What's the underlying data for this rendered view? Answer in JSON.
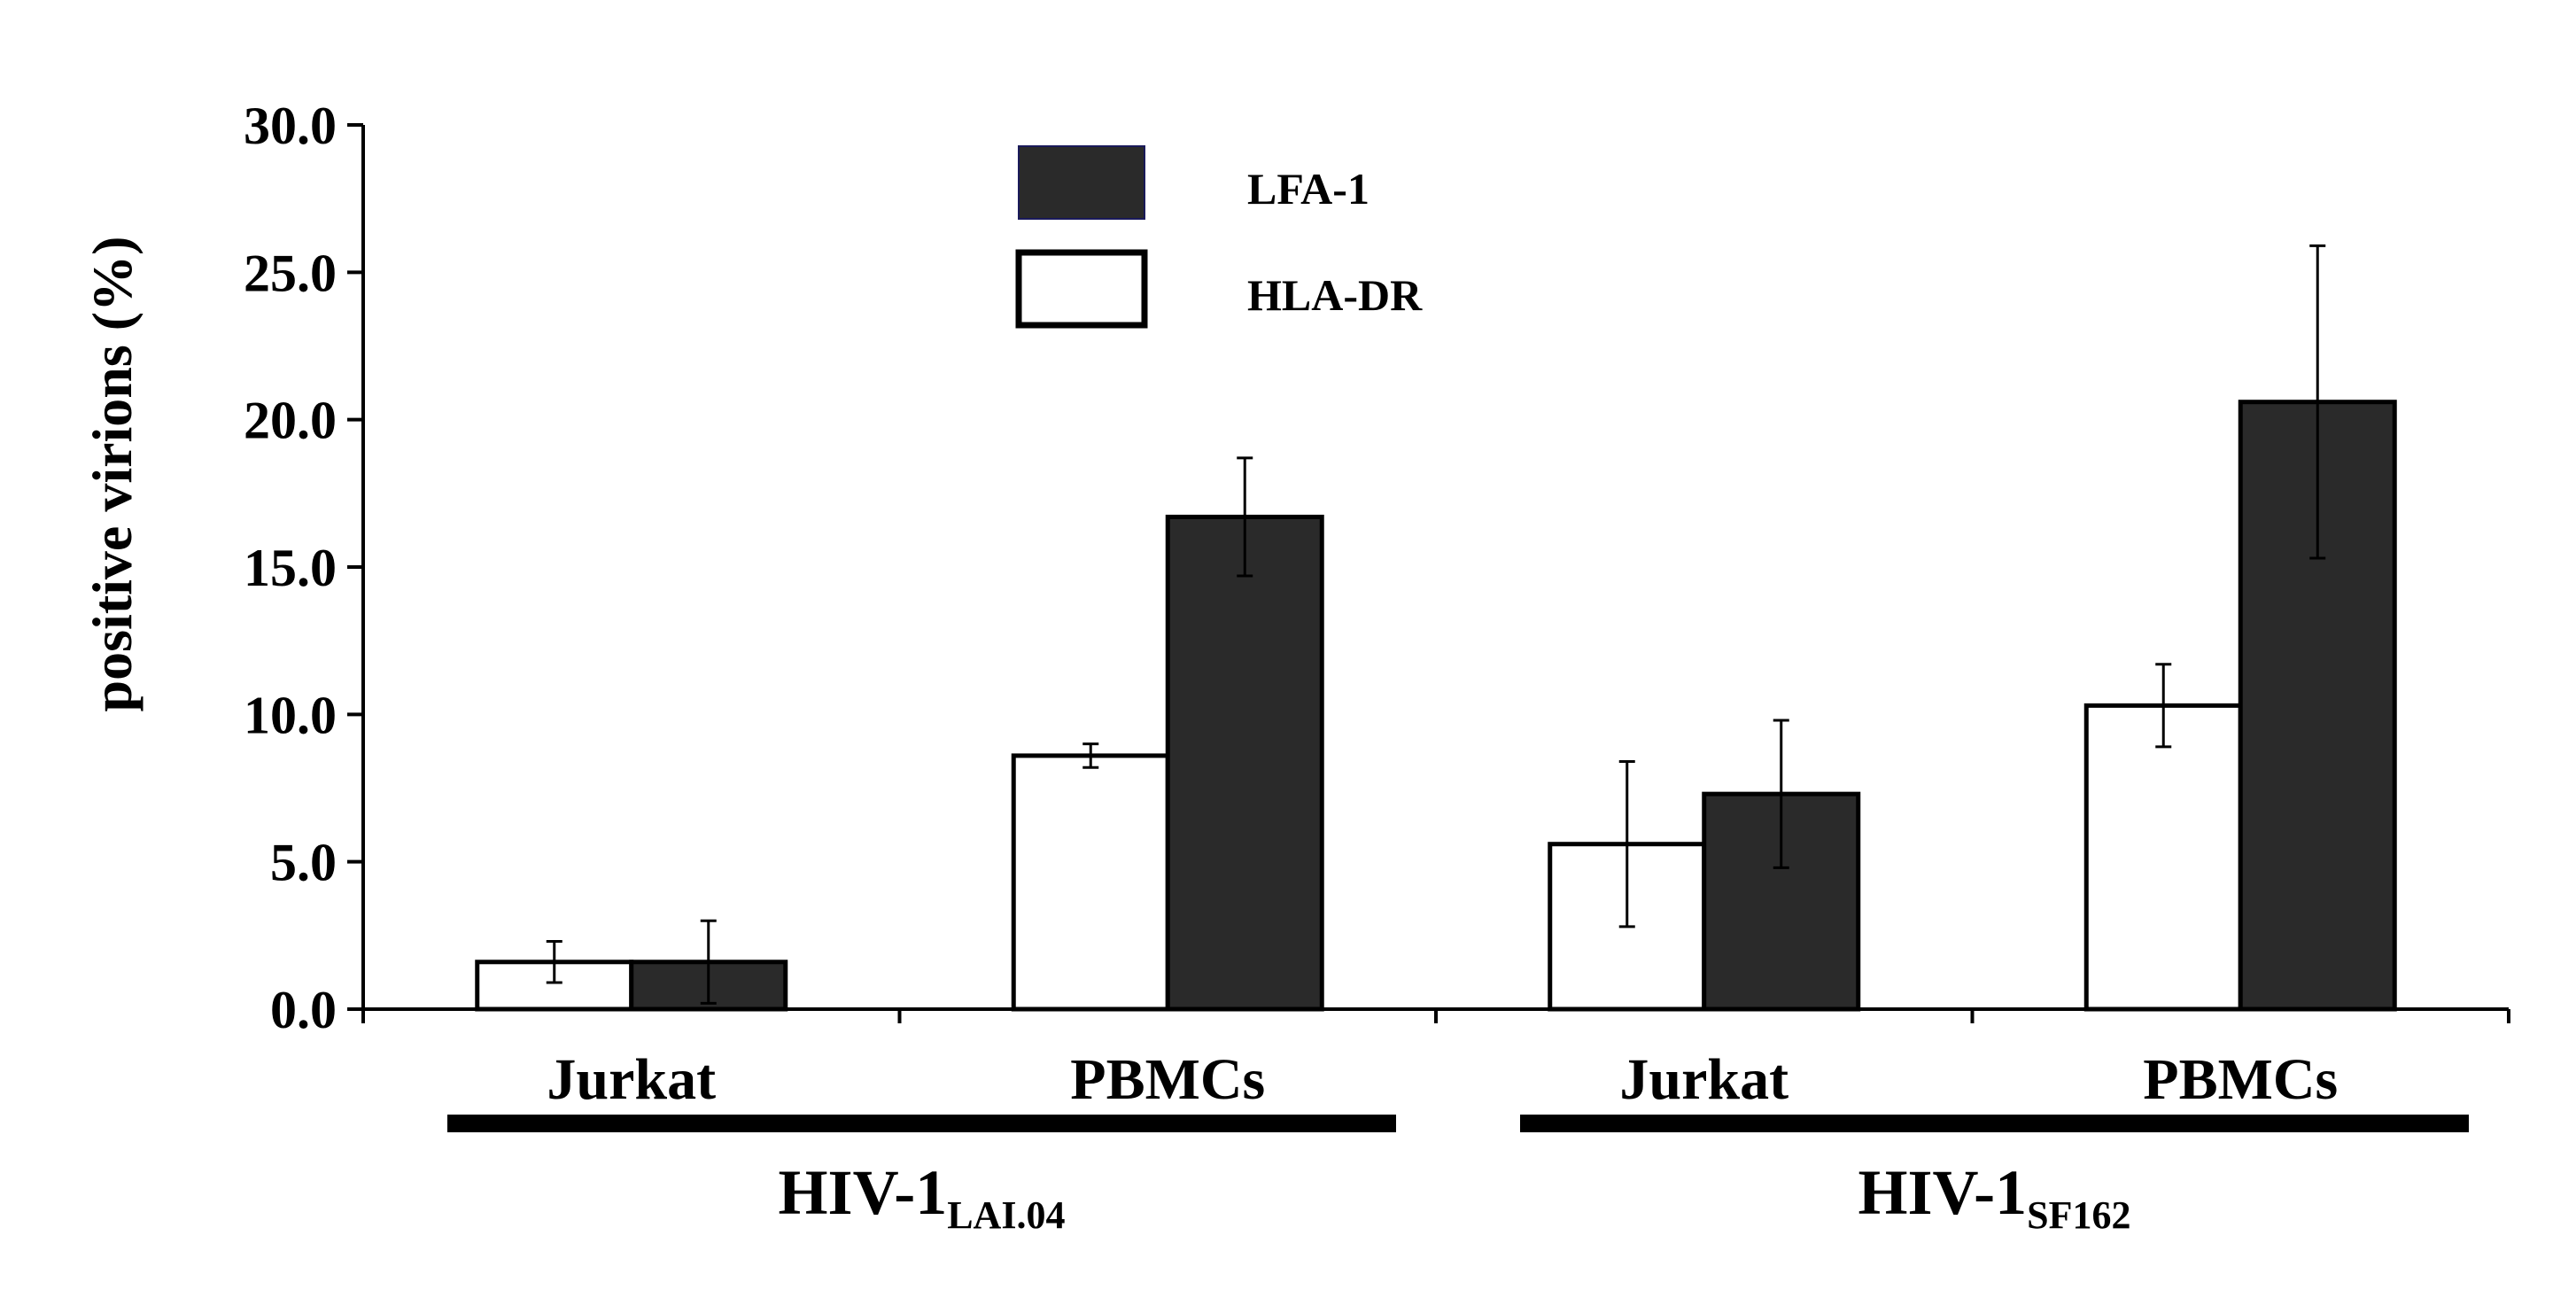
{
  "chart_data": {
    "type": "bar",
    "ylabel": "positive virions (%)",
    "ylim": [
      0,
      30
    ],
    "yticks": [
      "0.0",
      "5.0",
      "10.0",
      "15.0",
      "20.0",
      "25.0",
      "30.0"
    ],
    "categories": [
      "Jurkat",
      "PBMCs",
      "Jurkat",
      "PBMCs"
    ],
    "groups": [
      {
        "base": "HIV-1",
        "sub": "LAI.04",
        "categories": [
          0,
          1
        ]
      },
      {
        "base": "HIV-1",
        "sub": "SF162",
        "categories": [
          2,
          3
        ]
      }
    ],
    "series": [
      {
        "name": "HLA-DR",
        "color": "#ffffff",
        "values": [
          1.6,
          8.6,
          5.6,
          10.3
        ],
        "errors": [
          0.7,
          0.4,
          2.8,
          1.4
        ]
      },
      {
        "name": "LFA-1",
        "color": "#2a2a2a",
        "values": [
          1.6,
          16.7,
          7.3,
          20.6
        ],
        "errors": [
          1.4,
          2.0,
          2.5,
          5.3
        ]
      }
    ],
    "legend_order": [
      "LFA-1",
      "HLA-DR"
    ],
    "legend_position": "top-center",
    "grid": false
  }
}
